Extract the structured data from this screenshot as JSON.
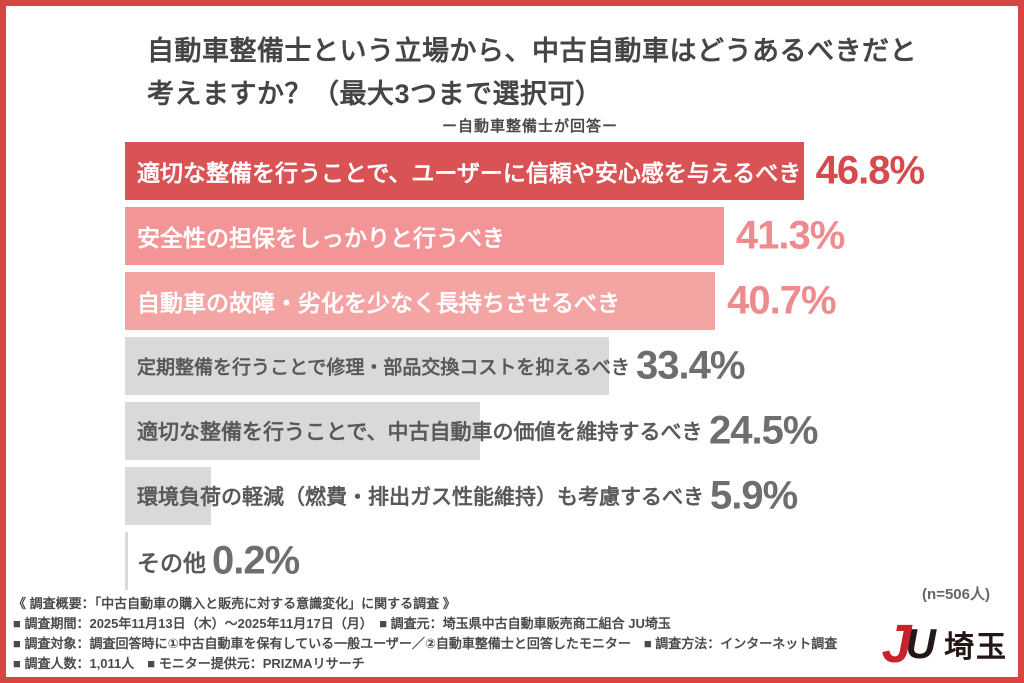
{
  "header": {
    "title_line1": "自動車整備士という立場から、中古自動車はどうあるべきだと",
    "title_line2": "考えますか？（最大3つまで選択可）",
    "subtitle": "ー自動車整備士が回答ー"
  },
  "chart_data": {
    "type": "bar",
    "orientation": "horizontal",
    "title": "自動車整備士という立場から、中古自動車はどうあるべきだと考えますか？（最大3つまで選択可）",
    "subtitle": "ー自動車整備士が回答ー",
    "categories": [
      "適切な整備を行うことで、ユーザーに信頼や安心感を与えるべき",
      "安全性の担保をしっかりと行うべき",
      "自動車の故障・劣化を少なく長持ちさせるべき",
      "定期整備を行うことで修理・部品交換コストを抑えるべき",
      "適切な整備を行うことで、中古自動車の価値を維持するべき",
      "環境負荷の軽減（燃費・排出ガス性能維持）も考慮するべき",
      "その他"
    ],
    "values": [
      46.8,
      41.3,
      40.7,
      33.4,
      24.5,
      5.9,
      0.2
    ],
    "value_labels": [
      "46.8%",
      "41.3%",
      "40.7%",
      "33.4%",
      "24.5%",
      "5.9%",
      "0.2%"
    ],
    "unit": "%",
    "xlim": [
      0,
      50
    ],
    "grid": false,
    "legend": false,
    "sample_note": "(n=506人)",
    "bar_colors": [
      "#d95254",
      "#f39596",
      "#f5a4a4",
      "#d9d9d9",
      "#d9d9d9",
      "#d9d9d9",
      "#d9d9d9"
    ],
    "label_colors": [
      "#ffffff",
      "#ffffff",
      "#ffffff",
      "#595959",
      "#595959",
      "#595959",
      "#595959"
    ],
    "value_colors": [
      "#d8494c",
      "#ef8b8d",
      "#ef8b8d",
      "#6e6e6e",
      "#6e6e6e",
      "#6e6e6e",
      "#6e6e6e"
    ]
  },
  "footer": {
    "lines": [
      "《 調査概要：「中古自動車の購入と販売に対する意識変化」に関する調査 》",
      "■ 調査期間：2025年11月13日（木）～2025年11月17日（月）　■ 調査元：埼玉県中古自動車販売商工組合 JU埼玉",
      "■ 調査対象：調査回答時に①中古自動車を保有している一般ユーザー／②自動車整備士と回答したモニター　■ 調査方法：インターネット調査",
      "■ 調査人数：1,011人　■ モニター提供元：PRIZMAリサーチ"
    ]
  },
  "logo": {
    "j": "J",
    "u": "U",
    "text": "埼玉",
    "red": "#c8232c",
    "dark": "#231815"
  },
  "frame": {
    "border_color": "#d64541",
    "background": "#ffffff"
  }
}
